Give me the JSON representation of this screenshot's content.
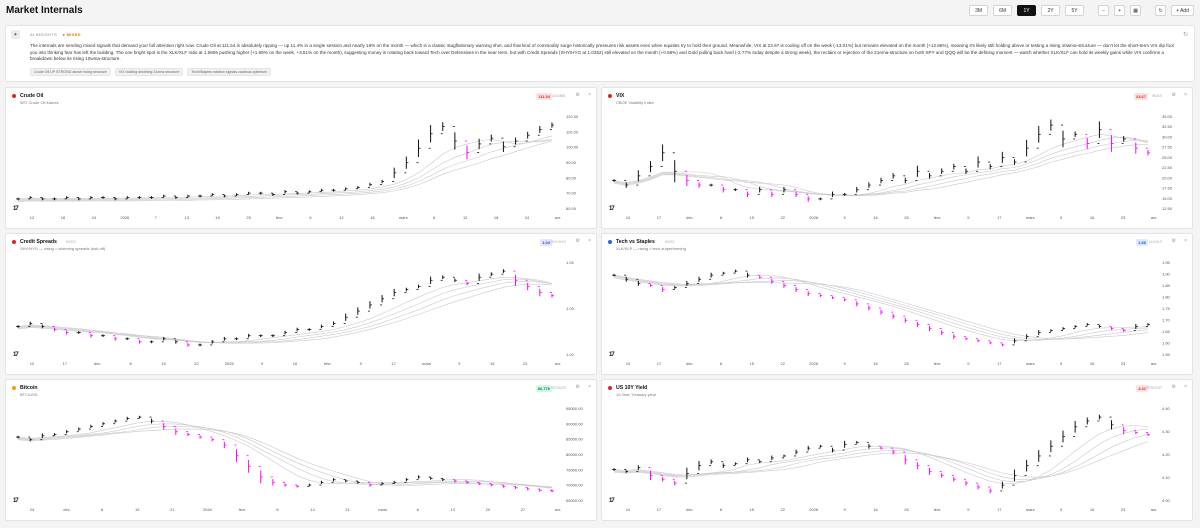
{
  "header": {
    "title": "Market Internals",
    "ranges": [
      "3M",
      "6M",
      "1Y",
      "2Y",
      "5Y"
    ],
    "active_range": "1Y",
    "add_label": "+ Add"
  },
  "insights": {
    "label": "AI INSIGHTS",
    "badge": "● MIXED",
    "text": "The internals are sending mixed signals that demand your full attention right now. Crude Oil at 111.54 is absolutely ripping — up 11.4% in a single session and nearly 18% on the month — which is a classic stagflationary warning shot, and that kind of commodity surge historically pressures risk assets even when equities try to hold their ground. Meanwhile, VIX at 23.67 is cooling off on the week (-13.01%) but remains elevated on the month (+12.86%), meaning it's likely still holding above or testing a rising 10wma-structure — don't let the short-term VIX dip fool you into thinking fear has left the building. The one bright spot is the XLK/XLF ratio at 1.6606 pushing higher (+1.69% on the week, +3.51% on the month), suggesting money is rotating back toward Tech over Defensives in the near term, but with Credit Spreads (SHY/HYG at 1.0352) still elevated on the month (+0.58%) and Gold pulling back hard (-2.77% today despite a strong week), the reclaim or rejection of the 21ema-structure on both SPY and QQQ will be the defining moment — watch whether XLK/XLF can hold its weekly gains while VIX confirms a breakdown below its rising 10wma-structure.",
    "chips": [
      "Crude Oil UP STRONG above rising structure",
      "VIX holding declining 21ema structure",
      "Tech/Staples rotation signals cautious optimism"
    ]
  },
  "panels": [
    {
      "name": "Crude Oil",
      "symbol": "WTI Crude Oil futures",
      "sub": "",
      "price": "111.54",
      "unit": "USD/BBL",
      "dot": "#dc2626",
      "price_bg": "#fde2e2",
      "price_color": "#dc2626",
      "ticks": [
        "120.00",
        "110.00",
        "100.00",
        "90.00",
        "80.00",
        "70.00",
        "60.00"
      ],
      "xlabels": [
        "12",
        "18",
        "24",
        "2026",
        "7",
        "13",
        "19",
        "25",
        "févr.",
        "6",
        "12",
        "18",
        "mars",
        "6",
        "12",
        "18",
        "24",
        "avr."
      ],
      "chart_data": {
        "type": "bar",
        "series": [
          {
            "name": "Crude Oil",
            "values": [
              60,
              61,
              60,
              60,
              61,
              60,
              61,
              61,
              60,
              61,
              61,
              61,
              62,
              61,
              62,
              62,
              63,
              62,
              63,
              64,
              64,
              63,
              65,
              64,
              65,
              66,
              66,
              67,
              68,
              70,
              72,
              78,
              85,
              95,
              105,
              110,
              100,
              92,
              98,
              102,
              96,
              100,
              104,
              108,
              111
            ]
          }
        ]
      }
    },
    {
      "name": "VIX",
      "symbol": "CBOE Volatility Index",
      "sub": "",
      "price": "23.67",
      "unit": "INDEX",
      "dot": "#dc2626",
      "price_bg": "#fde2e2",
      "price_color": "#dc2626",
      "ticks": [
        "35.00",
        "32.50",
        "30.00",
        "27.50",
        "25.00",
        "22.50",
        "20.00",
        "17.50",
        "15.00",
        "12.50"
      ],
      "xlabels": [
        "10",
        "17",
        "déc.",
        "8",
        "15",
        "22",
        "2026",
        "9",
        "16",
        "26",
        "févr.",
        "9",
        "17",
        "mars",
        "9",
        "16",
        "23",
        "avr."
      ],
      "chart_data": {
        "type": "bar",
        "series": [
          {
            "name": "VIX",
            "values": [
              17,
              16,
              18,
              20,
              23,
              19,
              17,
              16,
              16,
              15,
              15,
              14,
              15,
              14,
              15,
              14,
              13,
              13,
              14,
              14,
              15,
              16,
              17,
              18,
              17,
              19,
              18,
              19,
              20,
              19,
              21,
              20,
              22,
              21,
              24,
              27,
              29,
              26,
              27,
              25,
              28,
              25,
              26,
              24,
              23
            ]
          }
        ]
      }
    },
    {
      "name": "Credit Spreads",
      "symbol": "SHY/HYG — rising = widening spreads (risk-off)",
      "sub": "RATIO",
      "price": "1.04",
      "unit": "SHY/HYG",
      "dot": "#dc2626",
      "price_bg": "#e0e7ff",
      "price_color": "#4338ca",
      "ticks": [
        "1.04",
        "1.03",
        "1.02"
      ],
      "xlabels": [
        "10",
        "17",
        "déc.",
        "8",
        "15",
        "22",
        "2026",
        "9",
        "16",
        "févr.",
        "9",
        "17",
        "mars",
        "9",
        "16",
        "23",
        "avr."
      ],
      "chart_data": {
        "type": "bar",
        "series": [
          {
            "name": "Credit Spreads",
            "values": [
              1.025,
              1.026,
              1.025,
              1.024,
              1.023,
              1.023,
              1.022,
              1.022,
              1.021,
              1.021,
              1.02,
              1.02,
              1.021,
              1.02,
              1.019,
              1.019,
              1.02,
              1.021,
              1.021,
              1.022,
              1.022,
              1.022,
              1.023,
              1.024,
              1.024,
              1.025,
              1.026,
              1.028,
              1.03,
              1.032,
              1.034,
              1.036,
              1.037,
              1.038,
              1.04,
              1.041,
              1.04,
              1.039,
              1.041,
              1.042,
              1.043,
              1.04,
              1.038,
              1.036,
              1.035
            ]
          }
        ]
      }
    },
    {
      "name": "Tech vs Staples",
      "symbol": "XLK/XLP — rising = tech outperforming",
      "sub": "RATIO",
      "price": "1.66",
      "unit": "XLK/XLP",
      "dot": "#2563eb",
      "price_bg": "#dbeafe",
      "price_color": "#1d4ed8",
      "ticks": [
        "1.95",
        "1.90",
        "1.85",
        "1.80",
        "1.75",
        "1.70",
        "1.65",
        "1.60",
        "1.55"
      ],
      "xlabels": [
        "10",
        "17",
        "déc.",
        "8",
        "15",
        "22",
        "2026",
        "9",
        "16",
        "26",
        "févr.",
        "9",
        "17",
        "mars",
        "9",
        "16",
        "23",
        "avr."
      ],
      "chart_data": {
        "type": "bar",
        "series": [
          {
            "name": "Tech vs Staples",
            "values": [
              1.9,
              1.88,
              1.86,
              1.85,
              1.83,
              1.84,
              1.86,
              1.88,
              1.9,
              1.91,
              1.92,
              1.9,
              1.89,
              1.87,
              1.85,
              1.83,
              1.81,
              1.8,
              1.79,
              1.78,
              1.76,
              1.74,
              1.72,
              1.7,
              1.68,
              1.66,
              1.64,
              1.62,
              1.6,
              1.59,
              1.58,
              1.57,
              1.56,
              1.58,
              1.6,
              1.62,
              1.63,
              1.64,
              1.65,
              1.66,
              1.65,
              1.64,
              1.63,
              1.65,
              1.66
            ]
          }
        ]
      }
    },
    {
      "name": "Bitcoin",
      "symbol": "BTC/USD",
      "sub": "",
      "price": "66,776",
      "unit": "BTC/USD",
      "dot": "#f59e0b",
      "price_bg": "#d1fae5",
      "price_color": "#047857",
      "ticks": [
        "95000.00",
        "90000.00",
        "85000.00",
        "80000.00",
        "75000.00",
        "70000.00",
        "65000.00"
      ],
      "xlabels": [
        "24",
        "déc.",
        "8",
        "15",
        "21",
        "2026",
        "févr.",
        "6",
        "13",
        "21",
        "mars",
        "6",
        "13",
        "20",
        "27",
        "avr."
      ],
      "chart_data": {
        "type": "bar",
        "series": [
          {
            "name": "Bitcoin",
            "values": [
              87000,
              86000,
              87500,
              88000,
              89000,
              90000,
              91000,
              92000,
              93000,
              94000,
              94500,
              93000,
              91000,
              89000,
              88000,
              87000,
              86000,
              84000,
              80000,
              76000,
              72000,
              70000,
              69000,
              68500,
              69000,
              70000,
              71000,
              70500,
              70000,
              69000,
              69500,
              70000,
              71000,
              72000,
              71500,
              71000,
              70500,
              70000,
              69500,
              69000,
              68500,
              68000,
              67500,
              67000,
              66776
            ]
          }
        ]
      }
    },
    {
      "name": "US 10Y Yield",
      "symbol": "10-Year Treasury yield",
      "sub": "",
      "price": "4.31",
      "unit": "PERCENT",
      "dot": "#dc2626",
      "price_bg": "#fde2e2",
      "price_color": "#dc2626",
      "ticks": [
        "4.40",
        "4.30",
        "4.20",
        "4.10",
        "4.00"
      ],
      "xlabels": [
        "10",
        "17",
        "déc.",
        "8",
        "15",
        "22",
        "2026",
        "9",
        "16",
        "26",
        "févr.",
        "9",
        "17",
        "mars",
        "9",
        "16",
        "23",
        "avr."
      ],
      "chart_data": {
        "type": "bar",
        "series": [
          {
            "name": "US 10Y Yield",
            "values": [
              4.13,
              4.12,
              4.14,
              4.1,
              4.08,
              4.06,
              4.11,
              4.15,
              4.17,
              4.15,
              4.16,
              4.18,
              4.17,
              4.19,
              4.2,
              4.22,
              4.24,
              4.25,
              4.23,
              4.26,
              4.27,
              4.25,
              4.24,
              4.22,
              4.18,
              4.15,
              4.12,
              4.1,
              4.08,
              4.06,
              4.04,
              4.02,
              4.05,
              4.1,
              4.15,
              4.2,
              4.25,
              4.3,
              4.35,
              4.38,
              4.4,
              4.36,
              4.33,
              4.32,
              4.31
            ]
          }
        ]
      }
    }
  ]
}
